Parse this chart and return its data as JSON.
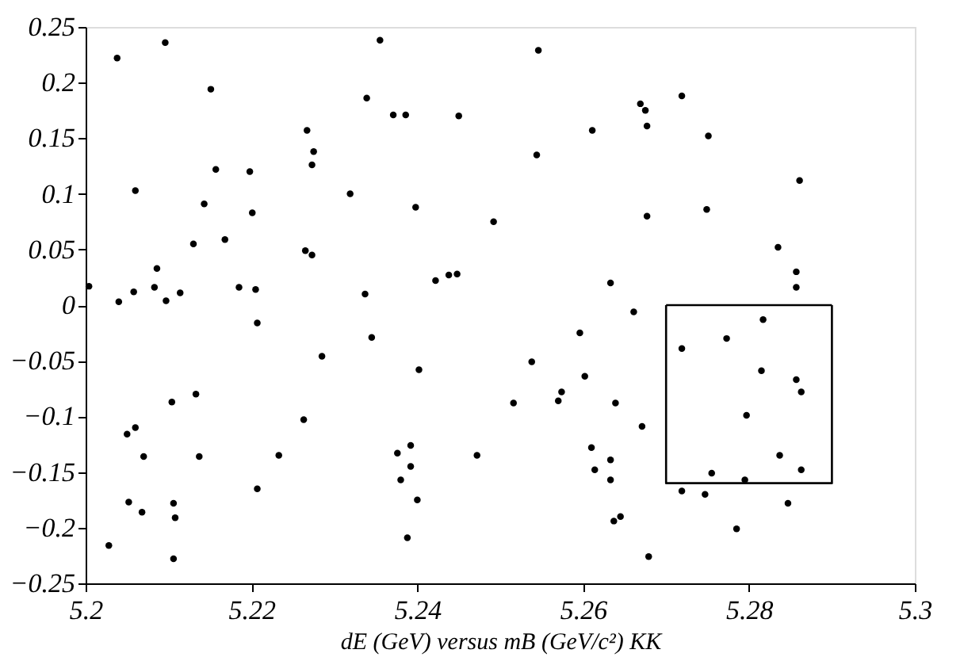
{
  "chart_data": {
    "type": "scatter",
    "xlabel": "dE (GeV) versus mB (GeV/c²) KK",
    "xlim": [
      5.2,
      5.3
    ],
    "ylim": [
      -0.25,
      0.25
    ],
    "xticks": [
      5.2,
      5.22,
      5.24,
      5.26,
      5.28,
      5.3
    ],
    "yticks": [
      -0.25,
      -0.2,
      -0.15,
      -0.1,
      -0.05,
      0,
      0.05,
      0.1,
      0.15,
      0.2,
      0.25
    ],
    "grid": false,
    "marker": "circle",
    "series": [
      {
        "type": "scatter",
        "color": "#000000",
        "x": [
          5.2038,
          5.2096,
          5.2151,
          5.206,
          5.2157,
          5.2198,
          5.2143,
          5.2201,
          5.213,
          5.2168,
          5.2086,
          5.204,
          5.2058,
          5.2083,
          5.2097,
          5.2114,
          5.2185,
          5.2205,
          5.2207,
          5.2004,
          5.2265,
          5.2273,
          5.2355,
          5.2546,
          5.2339,
          5.2371,
          5.2386,
          5.245,
          5.2267,
          5.2611,
          5.2275,
          5.2273,
          5.2544,
          5.2319,
          5.2398,
          5.2492,
          5.2422,
          5.2438,
          5.2448,
          5.2337,
          5.2633,
          5.2669,
          5.2675,
          5.2719,
          5.2677,
          5.2751,
          5.2861,
          5.2677,
          5.2749,
          5.2835,
          5.2857,
          5.2857,
          5.2661,
          5.2817,
          5.2719,
          5.2773,
          5.2815,
          5.2857,
          5.2863,
          5.2797,
          5.2837,
          5.2755,
          5.2795,
          5.2863,
          5.2719,
          5.2747,
          5.2847,
          5.2785,
          5.2679,
          5.2671,
          5.2639,
          5.2637,
          5.2645,
          5.2345,
          5.2285,
          5.2402,
          5.2538,
          5.2596,
          5.2602,
          5.2263,
          5.2516,
          5.257,
          5.2574,
          5.2392,
          5.2376,
          5.2392,
          5.238,
          5.24,
          5.2388,
          5.2472,
          5.261,
          5.2614,
          5.2633,
          5.2633,
          5.2104,
          5.2133,
          5.205,
          5.206,
          5.207,
          5.2137,
          5.2233,
          5.2207,
          5.2052,
          5.2068,
          5.2106,
          5.2108,
          5.2028,
          5.2106
        ],
        "values": [
          0.222,
          0.236,
          0.194,
          0.103,
          0.122,
          0.12,
          0.091,
          0.083,
          0.055,
          0.059,
          0.033,
          0.003,
          0.012,
          0.016,
          0.004,
          0.011,
          0.016,
          0.014,
          -0.016,
          0.017,
          0.049,
          0.045,
          0.238,
          0.229,
          0.186,
          0.171,
          0.171,
          0.17,
          0.157,
          0.157,
          0.138,
          0.126,
          0.135,
          0.1,
          0.088,
          0.075,
          0.022,
          0.027,
          0.028,
          0.01,
          0.02,
          0.181,
          0.175,
          0.188,
          0.161,
          0.152,
          0.112,
          0.08,
          0.086,
          0.052,
          0.03,
          0.016,
          -0.006,
          -0.013,
          -0.039,
          -0.03,
          -0.059,
          -0.067,
          -0.078,
          -0.099,
          -0.135,
          -0.151,
          -0.157,
          -0.148,
          -0.167,
          -0.17,
          -0.178,
          -0.201,
          -0.226,
          -0.109,
          -0.088,
          -0.194,
          -0.19,
          -0.029,
          -0.046,
          -0.058,
          -0.051,
          -0.025,
          -0.064,
          -0.103,
          -0.088,
          -0.086,
          -0.078,
          -0.126,
          -0.133,
          -0.145,
          -0.157,
          -0.175,
          -0.209,
          -0.135,
          -0.128,
          -0.148,
          -0.139,
          -0.157,
          -0.087,
          -0.08,
          -0.116,
          -0.11,
          -0.136,
          -0.136,
          -0.135,
          -0.165,
          -0.177,
          -0.186,
          -0.178,
          -0.191,
          -0.216,
          -0.228
        ]
      },
      {
        "type": "line",
        "color": "#000000",
        "marker": "none",
        "line_style": "solid",
        "x": [
          5.27,
          5.27,
          5.29,
          5.29
        ],
        "values": [
          0,
          -0.16,
          -0.16,
          0
        ]
      },
      {
        "type": "line",
        "color": "#000000",
        "marker": "none",
        "line_style": "solid",
        "x": [
          5.27,
          5.29
        ],
        "values": [
          0,
          0
        ]
      }
    ]
  }
}
